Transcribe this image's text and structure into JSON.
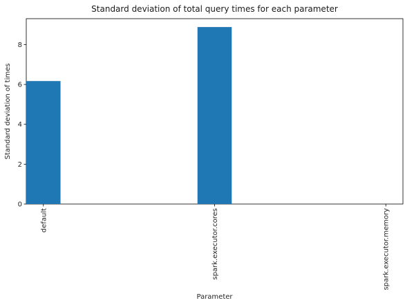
{
  "chart_data": {
    "type": "bar",
    "title": "Standard deviation of total query times for each parameter",
    "xlabel": "Parameter",
    "ylabel": "Standard deviation of times",
    "categories": [
      "default",
      "spark.executor.cores",
      "spark.executor.memory"
    ],
    "values": [
      6.17,
      8.88,
      0
    ],
    "ylim": [
      0,
      9.3
    ],
    "yticks": [
      0,
      2,
      4,
      6,
      8
    ],
    "grid": false,
    "legend": "none",
    "bar_color": "#1f77b4",
    "tick_label_rotation": "vertical"
  }
}
